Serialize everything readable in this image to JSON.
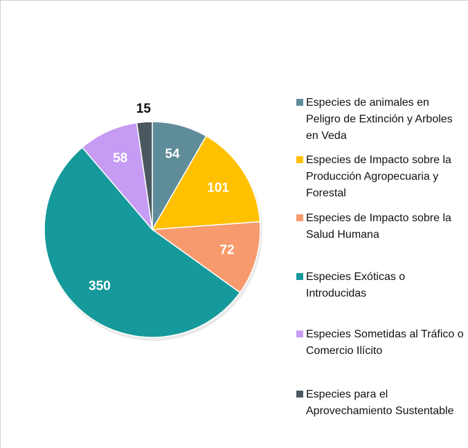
{
  "chart_data": {
    "type": "pie",
    "categories": [
      "Especies de animales en Peligro de Extinción y Arboles en Veda",
      "Especies de Impacto sobre la Producción Agropecuaria y Forestal",
      "Especies de Impacto sobre la Salud Humana",
      "Especies Exóticas o Introducidas",
      "Especies Sometidas al Tráfico o Comercio Ilícito",
      "Especies para el Aprovechamiento Sustentable"
    ],
    "values": [
      54,
      101,
      72,
      350,
      58,
      15
    ],
    "colors": [
      "#5f8c99",
      "#ffc000",
      "#f79a6d",
      "#16999a",
      "#c59bf4",
      "#4b5861"
    ],
    "legend": "right"
  }
}
